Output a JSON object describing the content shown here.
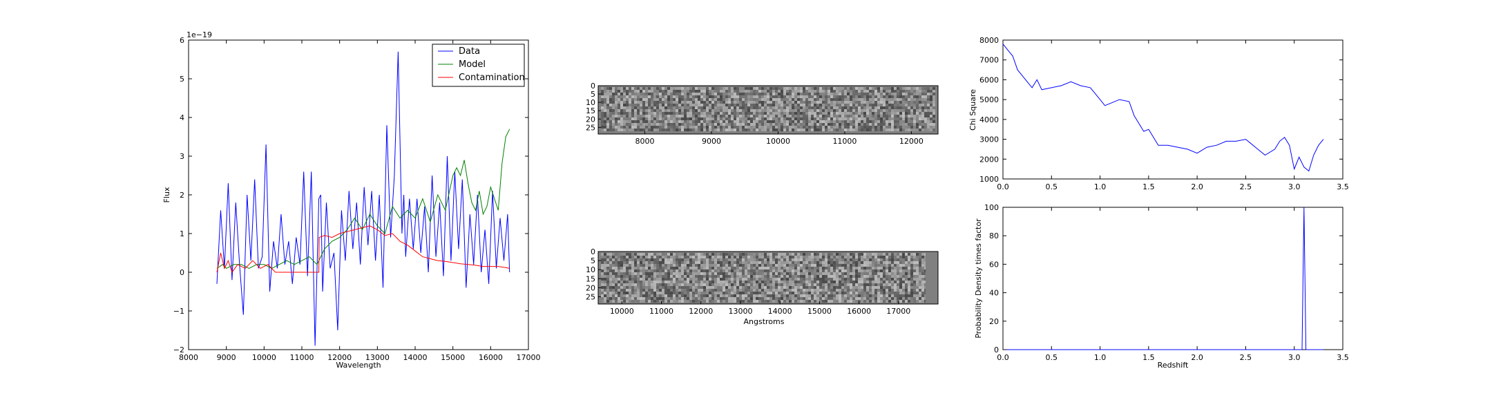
{
  "chart_data": [
    {
      "type": "line",
      "panel": "spectrum",
      "xlabel": "Wavelength",
      "ylabel": "Flux",
      "y_offset_text": "1e−19",
      "xlim": [
        8000,
        17000
      ],
      "ylim": [
        -2,
        6
      ],
      "xticks": [
        "8000",
        "9000",
        "10000",
        "11000",
        "12000",
        "13000",
        "14000",
        "15000",
        "16000",
        "17000"
      ],
      "yticks": [
        "−2",
        "−1",
        "0",
        "1",
        "2",
        "3",
        "4",
        "5",
        "6"
      ],
      "legend_position": "upper right",
      "colors": {
        "data": "#0000ff",
        "model": "#008000",
        "contamination": "#ff0000"
      },
      "series": [
        {
          "name": "Data",
          "color": "#0000ff",
          "x": [
            8750,
            8850,
            8950,
            9050,
            9150,
            9250,
            9350,
            9450,
            9550,
            9650,
            9750,
            9850,
            9950,
            10050,
            10150,
            10250,
            10350,
            10450,
            10550,
            10650,
            10750,
            10850,
            10950,
            11050,
            11150,
            11250,
            11350,
            11450,
            11500,
            11550,
            11650,
            11750,
            11850,
            11950,
            12050,
            12150,
            12250,
            12350,
            12450,
            12550,
            12650,
            12750,
            12850,
            12950,
            13050,
            13150,
            13250,
            13350,
            13450,
            13550,
            13650,
            13700,
            13750,
            13850,
            13950,
            14050,
            14150,
            14250,
            14350,
            14450,
            14550,
            14650,
            14750,
            14850,
            14950,
            15050,
            15150,
            15250,
            15350,
            15450,
            15550,
            15650,
            15750,
            15850,
            15950,
            16050,
            16150,
            16250,
            16350,
            16450,
            16500
          ],
          "y": [
            -0.3,
            1.6,
            0.1,
            2.3,
            -0.2,
            1.8,
            0.2,
            -1.1,
            2.0,
            0.3,
            2.4,
            0.1,
            0.4,
            3.3,
            -0.5,
            0.8,
            0.1,
            1.5,
            0.2,
            0.8,
            -0.3,
            0.9,
            0.2,
            2.6,
            -0.1,
            2.6,
            -1.9,
            1.9,
            2.0,
            -0.5,
            1.8,
            0.1,
            0.5,
            -1.5,
            1.6,
            0.3,
            2.1,
            0.6,
            1.8,
            0.2,
            2.2,
            0.7,
            2.1,
            0.3,
            2.0,
            -0.4,
            3.8,
            0.9,
            2.5,
            5.7,
            1.0,
            2.0,
            0.4,
            1.9,
            0.6,
            1.9,
            0.5,
            1.7,
            0.0,
            2.5,
            0.4,
            1.8,
            -0.1,
            3.0,
            0.3,
            2.6,
            0.6,
            2.4,
            -0.4,
            1.5,
            0.2,
            2.0,
            0.0,
            1.1,
            -0.3,
            2.1,
            0.1,
            1.4,
            0.3,
            1.5,
            0.0
          ]
        },
        {
          "name": "Model",
          "color": "#008000",
          "x": [
            8750,
            8900,
            9000,
            9200,
            9400,
            9600,
            9800,
            10000,
            10200,
            10400,
            10600,
            10800,
            11000,
            11200,
            11400,
            11600,
            11800,
            12000,
            12200,
            12400,
            12600,
            12800,
            13000,
            13200,
            13400,
            13600,
            13800,
            14000,
            14200,
            14400,
            14600,
            14800,
            15000,
            15100,
            15200,
            15300,
            15400,
            15500,
            15600,
            15700,
            15800,
            15900,
            16000,
            16100,
            16200,
            16300,
            16400,
            16500
          ],
          "y": [
            0.1,
            0.2,
            0.1,
            0.2,
            0.2,
            0.1,
            0.2,
            0.2,
            0.1,
            0.2,
            0.3,
            0.2,
            0.3,
            0.4,
            0.2,
            0.6,
            0.8,
            0.9,
            1.1,
            1.4,
            1.1,
            1.5,
            1.2,
            1.0,
            1.7,
            1.4,
            1.6,
            1.4,
            1.9,
            1.3,
            2.0,
            1.6,
            2.5,
            2.7,
            2.5,
            2.9,
            2.3,
            1.8,
            1.6,
            2.1,
            1.5,
            1.7,
            2.2,
            1.9,
            1.6,
            2.8,
            3.5,
            3.7
          ]
        },
        {
          "name": "Contamination",
          "color": "#ff0000",
          "x": [
            8750,
            8850,
            8950,
            9050,
            9150,
            9300,
            9500,
            9700,
            9900,
            10100,
            10300,
            10500,
            10700,
            10900,
            11100,
            11300,
            11450,
            11460,
            11600,
            11800,
            12000,
            12200,
            12400,
            12600,
            12800,
            13000,
            13200,
            13400,
            13600,
            13800,
            14000,
            14200,
            14400,
            14600,
            14800,
            15000,
            15200,
            15400,
            15600,
            15800,
            16000,
            16200,
            16400,
            16500
          ],
          "y": [
            0.0,
            0.5,
            0.1,
            0.3,
            0.0,
            0.2,
            0.1,
            0.3,
            0.1,
            0.2,
            0.0,
            0.0,
            0.0,
            0.0,
            0.0,
            0.0,
            0.0,
            0.9,
            0.95,
            0.9,
            1.0,
            1.05,
            1.1,
            1.15,
            1.2,
            1.1,
            0.95,
            1.0,
            0.8,
            0.7,
            0.55,
            0.4,
            0.35,
            0.3,
            0.28,
            0.25,
            0.22,
            0.2,
            0.18,
            0.15,
            0.15,
            0.15,
            0.12,
            0.1
          ]
        }
      ]
    },
    {
      "type": "heatmap",
      "panel": "2d-spectrum-top",
      "xticks": [
        "8000",
        "9000",
        "10000",
        "11000",
        "12000"
      ],
      "xlim": [
        7300,
        12400
      ],
      "yticks": [
        "0",
        "5",
        "10",
        "15",
        "20",
        "25"
      ],
      "ylim": [
        0,
        29
      ],
      "colormap": "gray"
    },
    {
      "type": "heatmap",
      "panel": "2d-spectrum-bottom",
      "xlabel": "Angstroms",
      "xticks": [
        "10000",
        "11000",
        "12000",
        "13000",
        "14000",
        "15000",
        "16000",
        "17000"
      ],
      "xlim": [
        9400,
        18000
      ],
      "yticks": [
        "0",
        "5",
        "10",
        "15",
        "20",
        "25"
      ],
      "ylim": [
        0,
        29
      ],
      "colormap": "gray"
    },
    {
      "type": "line",
      "panel": "chi-square",
      "ylabel": "Chi Square",
      "xlim": [
        0.0,
        3.5
      ],
      "ylim": [
        1000,
        8000
      ],
      "xticks": [
        "0.0",
        "0.5",
        "1.0",
        "1.5",
        "2.0",
        "2.5",
        "3.0",
        "3.5"
      ],
      "yticks": [
        "1000",
        "2000",
        "3000",
        "4000",
        "5000",
        "6000",
        "7000",
        "8000"
      ],
      "series": [
        {
          "color": "#0000ff",
          "x": [
            0.0,
            0.05,
            0.1,
            0.15,
            0.2,
            0.25,
            0.3,
            0.35,
            0.4,
            0.5,
            0.6,
            0.7,
            0.8,
            0.9,
            1.0,
            1.05,
            1.1,
            1.2,
            1.3,
            1.35,
            1.4,
            1.45,
            1.5,
            1.55,
            1.6,
            1.7,
            1.8,
            1.9,
            2.0,
            2.1,
            2.2,
            2.3,
            2.4,
            2.5,
            2.55,
            2.6,
            2.7,
            2.8,
            2.85,
            2.9,
            2.95,
            3.0,
            3.05,
            3.1,
            3.15,
            3.2,
            3.25,
            3.3
          ],
          "y": [
            7800,
            7500,
            7200,
            6500,
            6200,
            5900,
            5600,
            6000,
            5500,
            5600,
            5700,
            5900,
            5700,
            5600,
            5000,
            4700,
            4800,
            5000,
            4900,
            4200,
            3800,
            3400,
            3500,
            3100,
            2700,
            2700,
            2600,
            2500,
            2300,
            2600,
            2700,
            2900,
            2900,
            3000,
            2800,
            2600,
            2200,
            2500,
            2900,
            3100,
            2700,
            1500,
            2100,
            1600,
            1400,
            2200,
            2700,
            3000
          ]
        }
      ]
    },
    {
      "type": "line",
      "panel": "probability-density",
      "xlabel": "Redshift",
      "ylabel": "Probability Density times factor",
      "xlim": [
        0.0,
        3.5
      ],
      "ylim": [
        0,
        100
      ],
      "xticks": [
        "0.0",
        "0.5",
        "1.0",
        "1.5",
        "2.0",
        "2.5",
        "3.0",
        "3.5"
      ],
      "yticks": [
        "0",
        "20",
        "40",
        "60",
        "80",
        "100"
      ],
      "series": [
        {
          "color": "#0000ff",
          "x": [
            0.0,
            3.05,
            3.08,
            3.1,
            3.12,
            3.15,
            3.3
          ],
          "y": [
            0,
            0,
            0,
            100,
            0,
            0,
            0
          ]
        }
      ]
    }
  ]
}
